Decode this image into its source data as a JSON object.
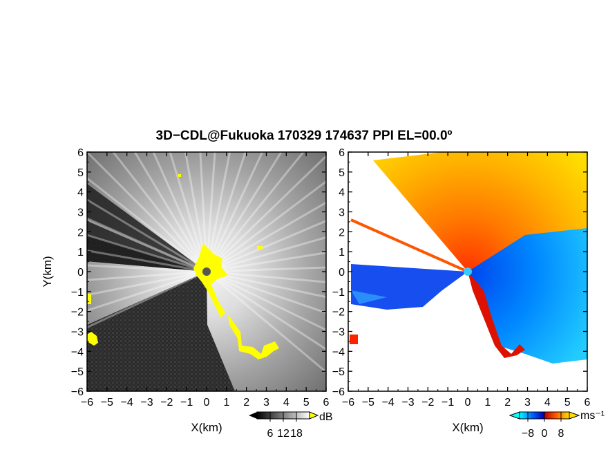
{
  "title": "3D−CDL@Fukuoka 170329 174637 PPI EL=00.0º",
  "chart_data": [
    {
      "type": "heatmap",
      "panel": "left",
      "variable_unit": "dB",
      "xlabel": "X(km)",
      "ylabel": "Y(km)",
      "xlim": [
        -6,
        6
      ],
      "ylim": [
        -6,
        6
      ],
      "xticks": [
        "−6",
        "−5",
        "−4",
        "−3",
        "−2",
        "−1",
        "0",
        "1",
        "2",
        "3",
        "4",
        "5",
        "6"
      ],
      "yticks": [
        "6",
        "5",
        "4",
        "3",
        "2",
        "1",
        "0",
        "−1",
        "−2",
        "−3",
        "−4",
        "−5",
        "−6"
      ],
      "colorbar": {
        "ticks": [
          "6",
          "12",
          "18"
        ],
        "values": [
          6,
          12,
          18
        ],
        "range": [
          0,
          24
        ],
        "unit": "dB",
        "colors": [
          "#000000",
          "#ffffff"
        ],
        "highlight_color": "#ffff00"
      }
    },
    {
      "type": "heatmap",
      "panel": "right",
      "variable_unit": "ms⁻¹",
      "xlabel": "X(km)",
      "xlim": [
        -6,
        6
      ],
      "ylim": [
        -6,
        6
      ],
      "xticks": [
        "−6",
        "−5",
        "−4",
        "−3",
        "−2",
        "−1",
        "0",
        "1",
        "2",
        "3",
        "4",
        "5",
        "6"
      ],
      "yticks": [
        "6",
        "5",
        "4",
        "3",
        "2",
        "1",
        "0",
        "−1",
        "−2",
        "−3",
        "−4",
        "−5",
        "−6"
      ],
      "colorbar": {
        "ticks": [
          "−8",
          "0",
          "8"
        ],
        "values": [
          -8,
          0,
          8
        ],
        "range": [
          -12,
          12
        ],
        "unit": "ms⁻¹",
        "colors": [
          "#00ffff",
          "#0055ff",
          "#0000cc",
          "#cc0000",
          "#ff6600",
          "#ffcc00"
        ]
      }
    }
  ]
}
